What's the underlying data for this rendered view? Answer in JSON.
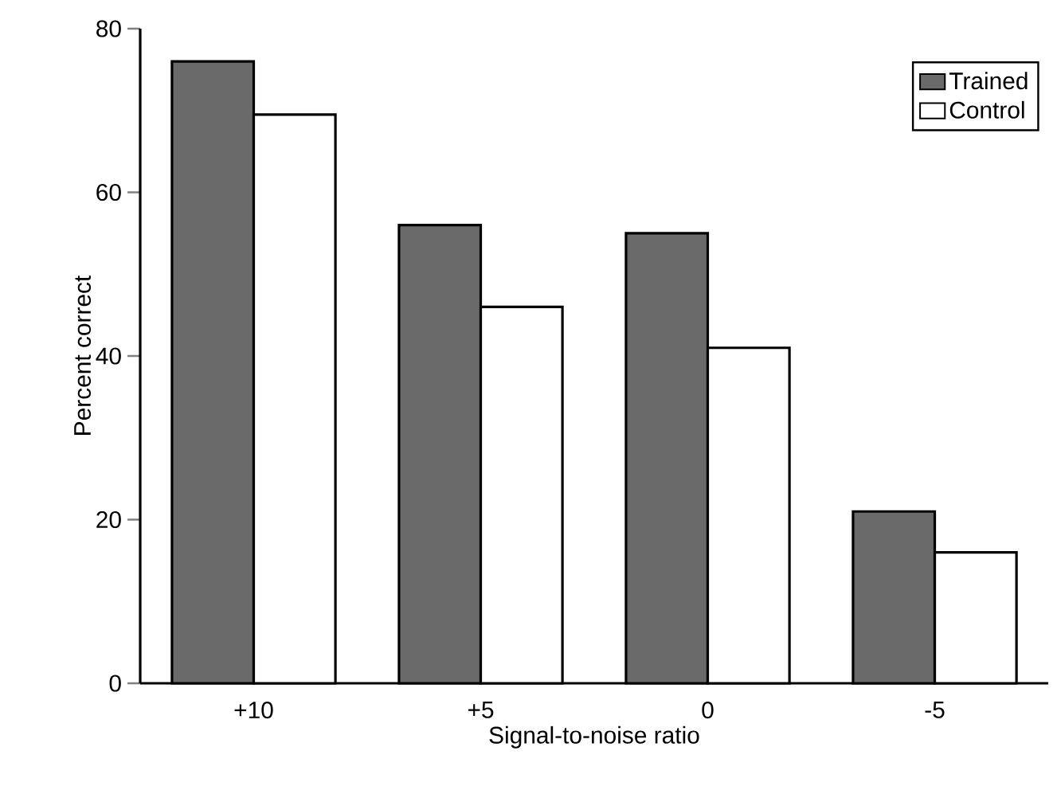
{
  "chart_data": {
    "type": "bar",
    "xlabel": "Signal-to-noise ratio",
    "ylabel": "Percent correct",
    "categories": [
      "+10",
      "+5",
      "0",
      "-5"
    ],
    "series": [
      {
        "name": "Trained",
        "color": "#6a6a6a",
        "values": [
          76,
          56,
          55,
          21
        ]
      },
      {
        "name": "Control",
        "color": "#ffffff",
        "values": [
          69.5,
          46,
          41,
          16
        ]
      }
    ],
    "ylim": [
      0,
      80
    ],
    "yticks": [
      0,
      20,
      40,
      60,
      80
    ],
    "legend": "top right"
  }
}
